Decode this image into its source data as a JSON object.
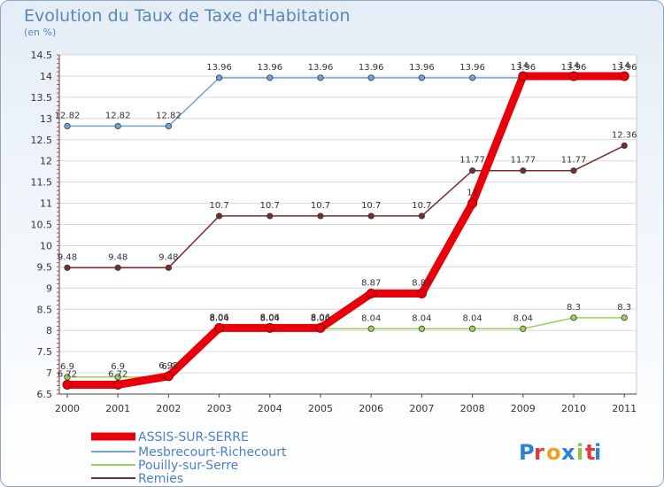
{
  "title": "Evolution du Taux de Taxe d'Habitation",
  "subtitle": "(en %)",
  "brand": "Proxiti",
  "chart_data": {
    "type": "line",
    "title": "Evolution du Taux de Taxe d'Habitation",
    "ylabel": "(en %)",
    "x": [
      "2000",
      "2001",
      "2002",
      "2003",
      "2004",
      "2005",
      "2006",
      "2007",
      "2008",
      "2009",
      "2010",
      "2011"
    ],
    "yticks": [
      "6.5",
      "7",
      "7.5",
      "8",
      "8.5",
      "9",
      "9.5",
      "10",
      "10.5",
      "11",
      "11.5",
      "12",
      "12.5",
      "13",
      "13.5",
      "14",
      "14.5"
    ],
    "ylim": [
      6.5,
      14.5
    ],
    "grid": "horizontal",
    "series": [
      {
        "name": "ASSIS-SUR-SERRE",
        "color": "#e8000a",
        "values": [
          6.72,
          6.72,
          6.92,
          8.06,
          8.06,
          8.06,
          8.87,
          8.87,
          11,
          14,
          14,
          14
        ],
        "labels": [
          "6.72",
          "6.72",
          "6.92",
          "8.06",
          "8.06",
          "8.06",
          "8.87",
          "8.87",
          "11",
          "14",
          "14",
          "14"
        ]
      },
      {
        "name": "Mesbrecourt-Richecourt",
        "color": "#6fa3d8",
        "values": [
          12.82,
          12.82,
          12.82,
          13.96,
          13.96,
          13.96,
          13.96,
          13.96,
          13.96,
          13.96,
          13.96,
          13.96
        ],
        "labels": [
          "12.82",
          "12.82",
          "12.82",
          "13.96",
          "13.96",
          "13.96",
          "13.96",
          "13.96",
          "13.96",
          "13.96",
          "13.96",
          "13.96"
        ]
      },
      {
        "name": "Pouilly-sur-Serre",
        "color": "#9ad25a",
        "values": [
          6.9,
          6.9,
          6.9,
          8.04,
          8.04,
          8.04,
          8.04,
          8.04,
          8.04,
          8.04,
          8.3,
          8.3
        ],
        "labels": [
          "6.9",
          "6.9",
          "6.9",
          "8.04",
          "8.04",
          "8.04",
          "8.04",
          "8.04",
          "8.04",
          "8.04",
          "8.3",
          "8.3"
        ]
      },
      {
        "name": "Remies",
        "color": "#7a2b2b",
        "values": [
          9.48,
          9.48,
          9.48,
          10.7,
          10.7,
          10.7,
          10.7,
          10.7,
          11.77,
          11.77,
          11.77,
          12.36
        ],
        "labels": [
          "9.48",
          "9.48",
          "9.48",
          "10.7",
          "10.7",
          "10.7",
          "10.7",
          "10.7",
          "11.77",
          "11.77",
          "11.77",
          "12.36"
        ]
      }
    ]
  }
}
